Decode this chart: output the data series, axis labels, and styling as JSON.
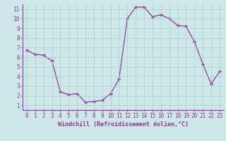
{
  "x": [
    0,
    1,
    2,
    3,
    4,
    5,
    6,
    7,
    8,
    9,
    10,
    11,
    12,
    13,
    14,
    15,
    16,
    17,
    18,
    19,
    20,
    21,
    22,
    23
  ],
  "y": [
    6.7,
    6.3,
    6.2,
    5.6,
    2.4,
    2.1,
    2.2,
    1.3,
    1.4,
    1.5,
    2.2,
    3.7,
    10.0,
    11.2,
    11.2,
    10.2,
    10.4,
    10.0,
    9.3,
    9.2,
    7.6,
    5.3,
    3.2,
    4.5
  ],
  "line_color": "#993399",
  "marker": "D",
  "marker_size": 2.0,
  "bg_color": "#cce8e8",
  "grid_color": "#aacccc",
  "xlabel": "Windchill (Refroidissement éolien,°C)",
  "xlim": [
    -0.5,
    23.5
  ],
  "ylim": [
    0.5,
    11.5
  ],
  "xticks": [
    0,
    1,
    2,
    3,
    4,
    5,
    6,
    7,
    8,
    9,
    10,
    11,
    12,
    13,
    14,
    15,
    16,
    17,
    18,
    19,
    20,
    21,
    22,
    23
  ],
  "yticks": [
    1,
    2,
    3,
    4,
    5,
    6,
    7,
    8,
    9,
    10,
    11
  ],
  "tick_color": "#993399",
  "label_color": "#993399",
  "tick_fontsize": 5.5,
  "xlabel_fontsize": 6.0,
  "line_width": 0.9
}
